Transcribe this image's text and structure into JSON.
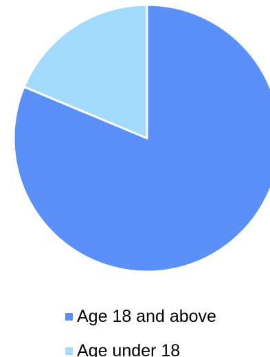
{
  "chart_data": {
    "type": "pie",
    "title": "",
    "categories": [
      "Age 18 and above",
      "Age under 18"
    ],
    "values": [
      81.3,
      18.7
    ],
    "colors": [
      "#5B8FF9",
      "#A3DAFF"
    ],
    "start_angle": "12 o'clock",
    "direction": "clockwise",
    "legend_position": "bottom",
    "labels_shown": false
  },
  "legend": {
    "items": [
      {
        "label": "Age 18 and above",
        "color": "#5B8FF9"
      },
      {
        "label": "Age under 18",
        "color": "#A3DAFF"
      }
    ]
  }
}
